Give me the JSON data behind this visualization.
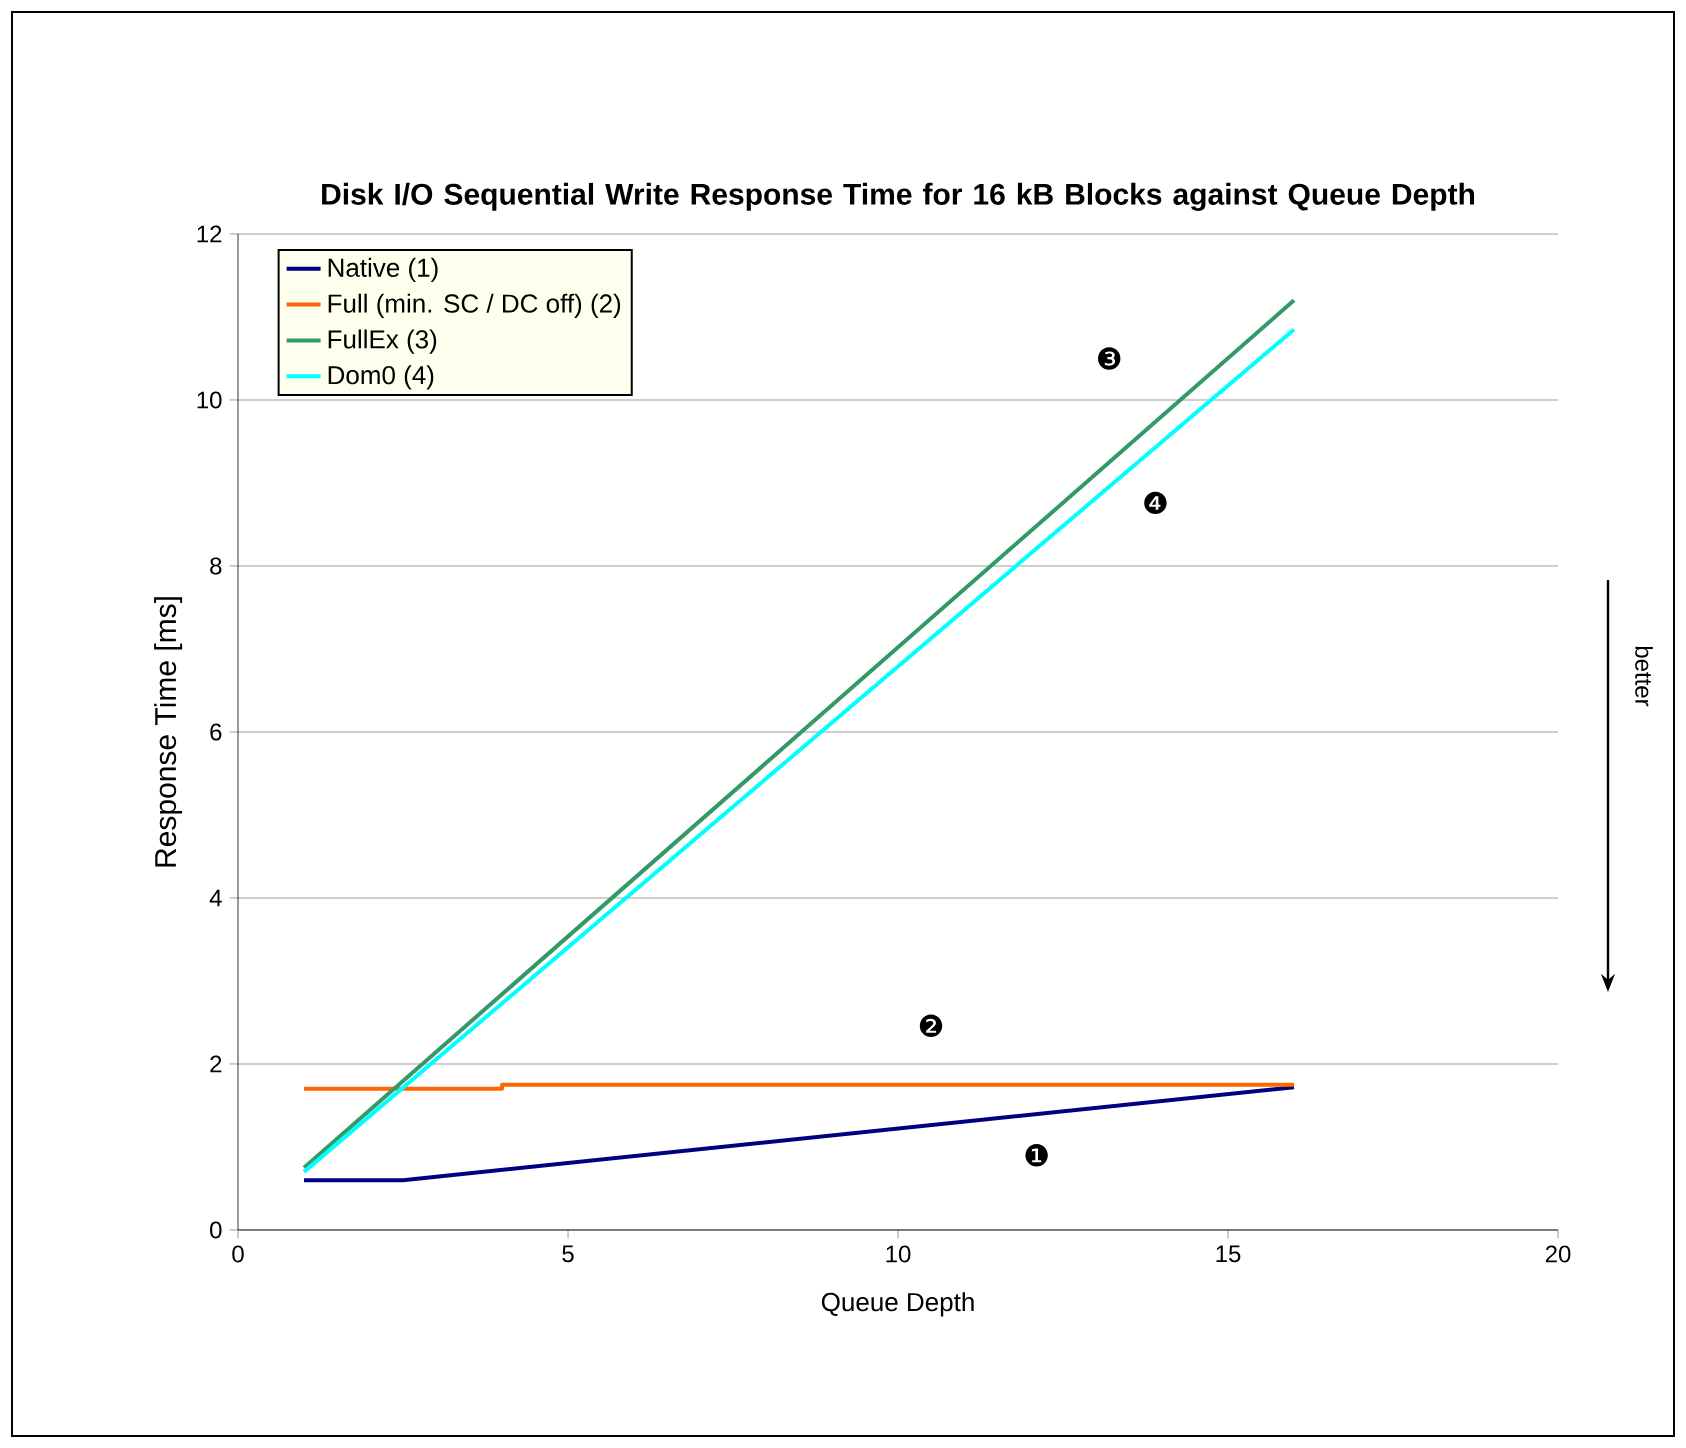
{
  "chart_data": {
    "type": "line",
    "title": "Disk I/O Sequential Write Response Time for 16 kB Blocks against Queue Depth",
    "xlabel": "Queue Depth",
    "ylabel": "Response Time [ms]",
    "xlim": [
      0,
      20
    ],
    "xticks": [
      0,
      5,
      10,
      15,
      20
    ],
    "ylim": [
      0,
      12
    ],
    "yticks": [
      0,
      2,
      4,
      6,
      8,
      10,
      12
    ],
    "grid": "y",
    "legend": "top left",
    "marker": "none",
    "line_style": "solid",
    "series": [
      {
        "name": "Native (1)",
        "color": "#000080",
        "x": [
          1,
          2.5,
          16
        ],
        "values": [
          0.6,
          0.6,
          1.72
        ]
      },
      {
        "name": "Full (min. SC / DC off) (2)",
        "color": "#ff6600",
        "x": [
          1,
          4,
          4,
          16
        ],
        "values": [
          1.7,
          1.7,
          1.75,
          1.75
        ]
      },
      {
        "name": "FullEx (3)",
        "color": "#339966",
        "x": [
          1,
          16
        ],
        "values": [
          0.75,
          11.2
        ]
      },
      {
        "name": "Dom0 (4)",
        "color": "#00ffff",
        "x": [
          1,
          16
        ],
        "values": [
          0.7,
          10.85
        ]
      }
    ],
    "annotations": [
      "❶",
      "❷",
      "❸",
      "❹",
      "better"
    ]
  }
}
